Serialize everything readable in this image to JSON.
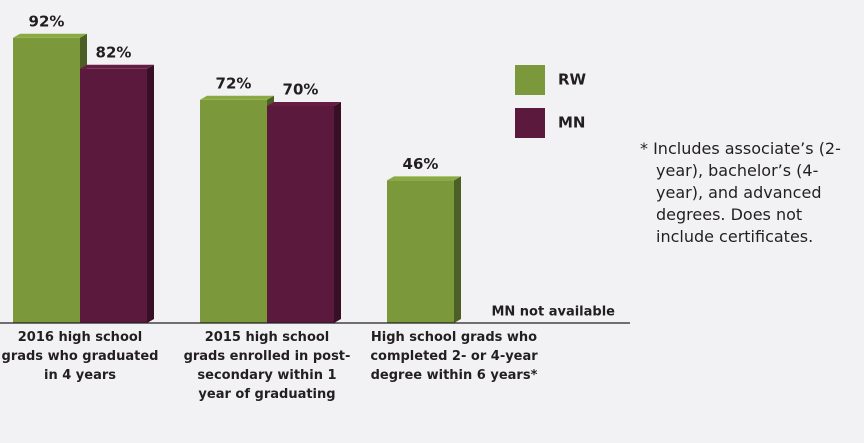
{
  "chart_data": {
    "type": "bar",
    "categories": [
      "2016 high school grads who graduated in 4 years",
      "2015 high school grads enrolled in post-secondary within 1 year of graduating",
      "High school grads who completed 2- or 4-year degree within 6 years*"
    ],
    "series": [
      {
        "name": "RW",
        "color": "#7b993a",
        "values": [
          92,
          72,
          46
        ],
        "value_labels": [
          "92%",
          "72%",
          "46%"
        ]
      },
      {
        "name": "MN",
        "color": "#5b1a3d",
        "values": [
          82,
          70,
          null
        ],
        "value_labels": [
          "82%",
          "70%",
          null
        ]
      }
    ],
    "ylim": [
      0,
      100
    ],
    "legend": "top-right",
    "annotations": [
      "MN not available",
      "* Includes associate’s (2-year), bachelor’s (4-year), and advanced degrees. Does not include certificates."
    ]
  }
}
